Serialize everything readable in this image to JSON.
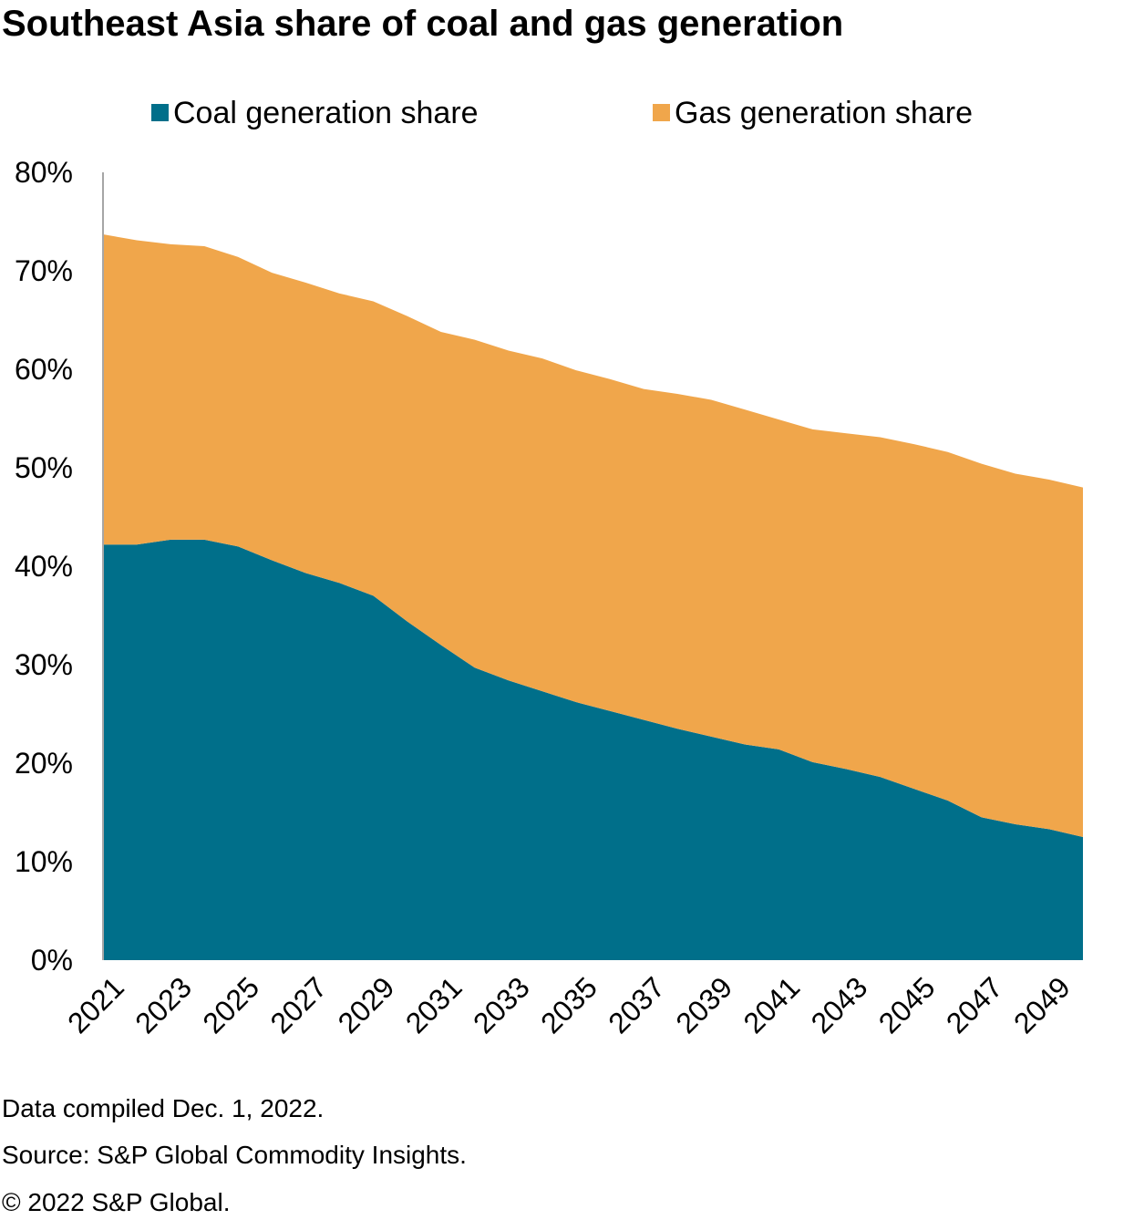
{
  "title": "Southeast Asia share of coal and gas generation",
  "footer": [
    "Data compiled Dec. 1, 2022.",
    "Source: S&P Global Commodity Insights.",
    "© 2022 S&P Global."
  ],
  "chart_data": {
    "type": "area",
    "stacked": true,
    "title": "Southeast Asia share of coal and gas generation",
    "xlabel": "",
    "ylabel": "",
    "ylim": [
      0,
      80
    ],
    "yticks": [
      "0%",
      "10%",
      "20%",
      "30%",
      "40%",
      "50%",
      "60%",
      "70%",
      "80%"
    ],
    "xtick_labels": [
      "2021",
      "2023",
      "2025",
      "2027",
      "2029",
      "2031",
      "2033",
      "2035",
      "2037",
      "2039",
      "2041",
      "2043",
      "2045",
      "2047",
      "2049"
    ],
    "grid": false,
    "legend": "top",
    "x": [
      2021,
      2022,
      2023,
      2024,
      2025,
      2026,
      2027,
      2028,
      2029,
      2030,
      2031,
      2032,
      2033,
      2034,
      2035,
      2036,
      2037,
      2038,
      2039,
      2040,
      2041,
      2042,
      2043,
      2044,
      2045,
      2046,
      2047,
      2048,
      2049,
      2050
    ],
    "series": [
      {
        "name": "Coal generation share",
        "color": "#006F8A",
        "values": [
          42.2,
          42.2,
          42.7,
          42.7,
          42.0,
          40.6,
          39.3,
          38.3,
          37.0,
          34.4,
          32.0,
          29.7,
          28.4,
          27.3,
          26.2,
          25.3,
          24.4,
          23.5,
          22.7,
          21.9,
          21.4,
          20.1,
          19.4,
          18.6,
          17.4,
          16.2,
          14.5,
          13.8,
          13.3,
          12.5
        ]
      },
      {
        "name": "Gas generation share",
        "color": "#F0A64B",
        "values": [
          31.5,
          30.9,
          30.0,
          29.8,
          29.4,
          29.2,
          29.5,
          29.4,
          29.9,
          31.0,
          31.8,
          33.3,
          33.5,
          33.8,
          33.7,
          33.7,
          33.6,
          34.0,
          34.2,
          34.0,
          33.5,
          33.8,
          34.1,
          34.5,
          35.0,
          35.4,
          35.9,
          35.6,
          35.5,
          35.5
        ]
      }
    ]
  }
}
